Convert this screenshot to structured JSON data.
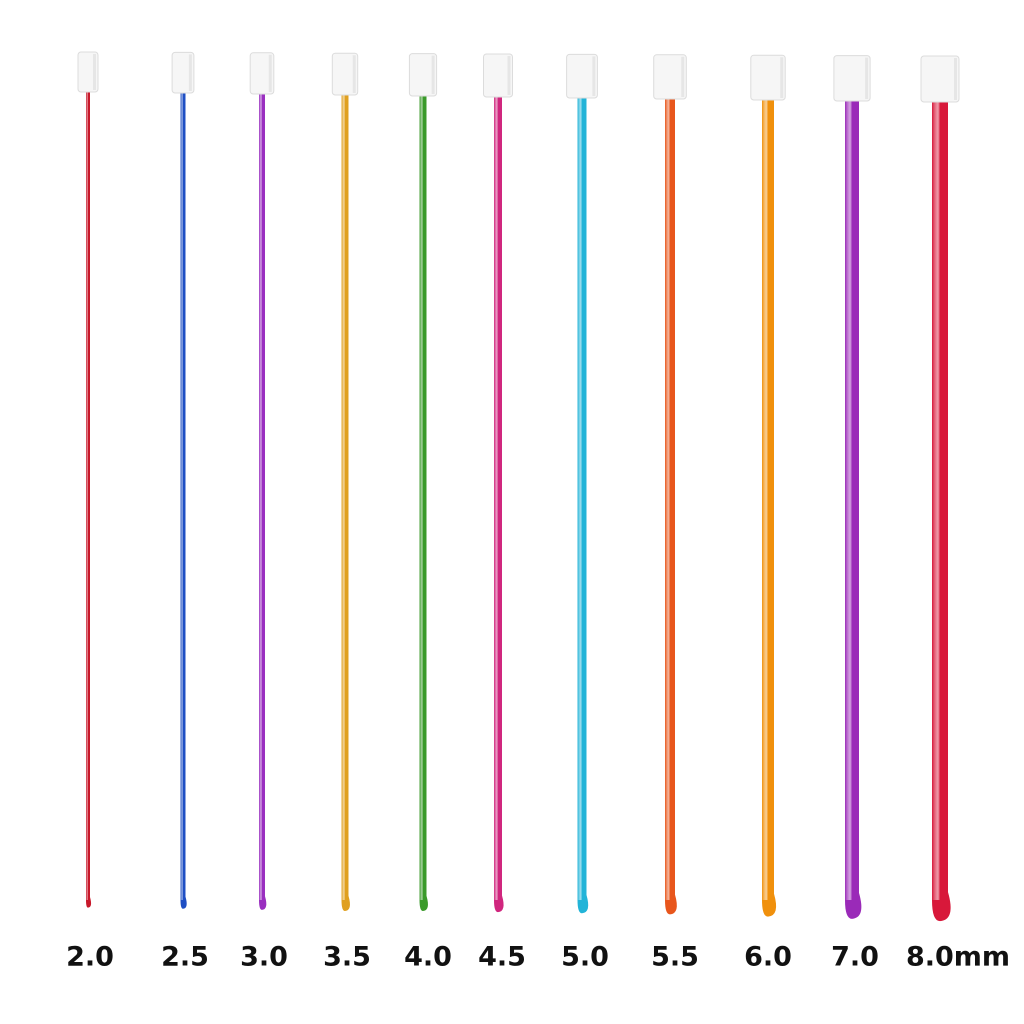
{
  "labels": [
    "2.0",
    "2.5",
    "3.0",
    "3.5",
    "4.0",
    "4.5",
    "5.0",
    "5.5",
    "6.0",
    "7.0",
    "8.0mm"
  ]
}
